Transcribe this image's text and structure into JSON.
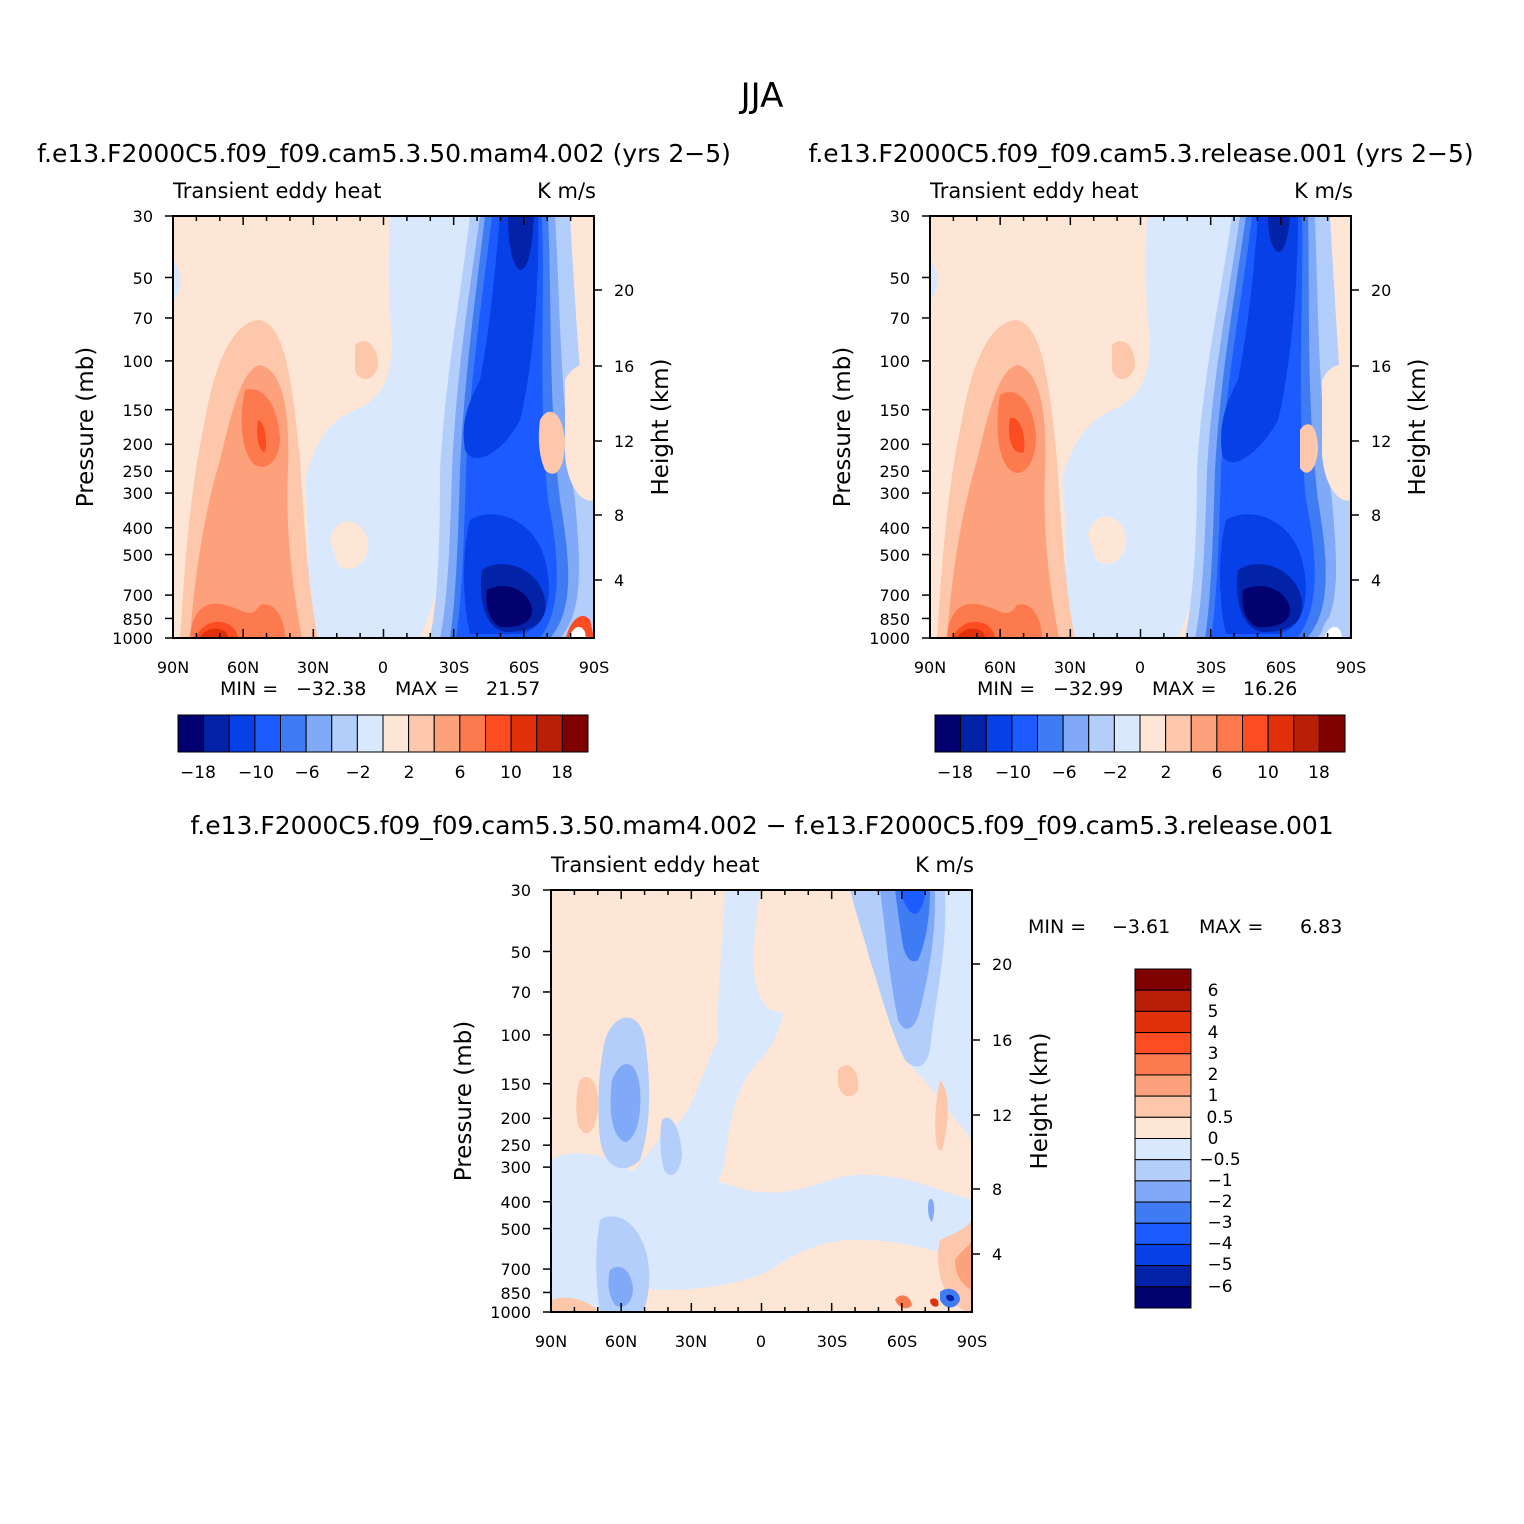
{
  "figure": {
    "title": "JJA"
  },
  "chart_data": [
    {
      "type": "contour",
      "title": "f.e13.F2000C5.f09_f09.cam5.3.50.mam4.002 (yrs 2−5)",
      "subtitle_left": "Transient eddy heat",
      "subtitle_right": "K m/s",
      "ylabel": "Pressure (mb)",
      "ylabel_right": "Height (km)",
      "x_ticks": [
        "90N",
        "60N",
        "30N",
        "0",
        "30S",
        "60S",
        "90S"
      ],
      "y_ticks": [
        "30",
        "50",
        "70",
        "100",
        "150",
        "200",
        "250",
        "300",
        "400",
        "500",
        "700",
        "850",
        "1000"
      ],
      "y_right_ticks": [
        "20",
        "16",
        "12",
        "8",
        "4"
      ],
      "stats": {
        "min_label": "MIN =",
        "min": "−32.38",
        "max_label": "MAX =",
        "max": "21.57"
      },
      "colorbar": {
        "labels": [
          "−18",
          "−10",
          "−6",
          "−2",
          "2",
          "6",
          "10",
          "18"
        ],
        "colors": [
          "#02016f",
          "#0222a8",
          "#0640e6",
          "#1c5bff",
          "#3f7cf3",
          "#80a9f8",
          "#b4cefc",
          "#d9e8fd",
          "#fee6d6",
          "#fdc7ab",
          "#fda07c",
          "#fc7a4e",
          "#fb4c22",
          "#e0300a",
          "#b81f06",
          "#7f0200"
        ]
      }
    },
    {
      "type": "contour",
      "title": "f.e13.F2000C5.f09_f09.cam5.3.release.001 (yrs 2−5)",
      "subtitle_left": "Transient eddy heat",
      "subtitle_right": "K m/s",
      "ylabel": "Pressure (mb)",
      "ylabel_right": "Height (km)",
      "x_ticks": [
        "90N",
        "60N",
        "30N",
        "0",
        "30S",
        "60S",
        "90S"
      ],
      "y_ticks": [
        "30",
        "50",
        "70",
        "100",
        "150",
        "200",
        "250",
        "300",
        "400",
        "500",
        "700",
        "850",
        "1000"
      ],
      "y_right_ticks": [
        "20",
        "16",
        "12",
        "8",
        "4"
      ],
      "stats": {
        "min_label": "MIN =",
        "min": "−32.99",
        "max_label": "MAX =",
        "max": "16.26"
      },
      "colorbar": {
        "labels": [
          "−18",
          "−10",
          "−6",
          "−2",
          "2",
          "6",
          "10",
          "18"
        ],
        "colors": [
          "#02016f",
          "#0222a8",
          "#0640e6",
          "#1c5bff",
          "#3f7cf3",
          "#80a9f8",
          "#b4cefc",
          "#d9e8fd",
          "#fee6d6",
          "#fdc7ab",
          "#fda07c",
          "#fc7a4e",
          "#fb4c22",
          "#e0300a",
          "#b81f06",
          "#7f0200"
        ]
      }
    },
    {
      "type": "contour",
      "title": "f.e13.F2000C5.f09_f09.cam5.3.50.mam4.002 − f.e13.F2000C5.f09_f09.cam5.3.release.001",
      "subtitle_left": "Transient eddy heat",
      "subtitle_right": "K m/s",
      "ylabel": "Pressure (mb)",
      "ylabel_right": "Height (km)",
      "x_ticks": [
        "90N",
        "60N",
        "30N",
        "0",
        "30S",
        "60S",
        "90S"
      ],
      "y_ticks": [
        "30",
        "50",
        "70",
        "100",
        "150",
        "200",
        "250",
        "300",
        "400",
        "500",
        "700",
        "850",
        "1000"
      ],
      "y_right_ticks": [
        "20",
        "16",
        "12",
        "8",
        "4"
      ],
      "stats": {
        "min_label": "MIN =",
        "min": "−3.61",
        "max_label": "MAX =",
        "max": "6.83"
      },
      "colorbar": {
        "labels": [
          "6",
          "5",
          "4",
          "3",
          "2",
          "1",
          "0.5",
          "0",
          "−0.5",
          "−1",
          "−2",
          "−3",
          "−4",
          "−5",
          "−6"
        ],
        "colors": [
          "#7f0200",
          "#b81f06",
          "#e0300a",
          "#fb4c22",
          "#fc7a4e",
          "#fda07c",
          "#fdc7ab",
          "#fee6d6",
          "#d9e8fd",
          "#b4cefc",
          "#80a9f8",
          "#3f7cf3",
          "#1c5bff",
          "#0640e6",
          "#0222a8",
          "#02016f"
        ]
      }
    }
  ]
}
